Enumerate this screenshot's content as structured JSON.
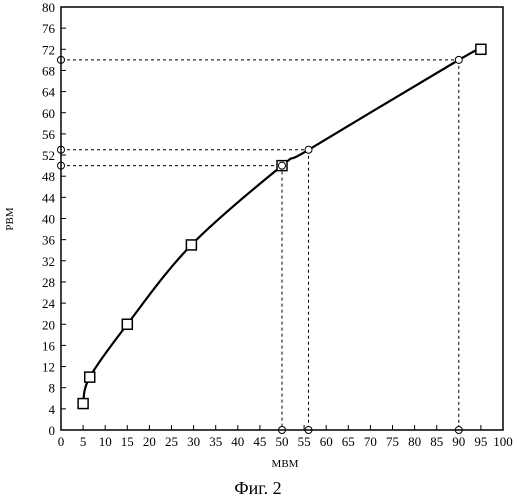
{
  "chart_data": {
    "type": "line",
    "xlabel": "МВМ",
    "ylabel": "РВМ",
    "caption": "Фиг. 2",
    "xlim": [
      0,
      100
    ],
    "ylim": [
      0,
      80
    ],
    "x_ticks": [
      0,
      5,
      10,
      15,
      20,
      25,
      30,
      35,
      40,
      45,
      50,
      55,
      60,
      65,
      70,
      75,
      80,
      85,
      90,
      95,
      100
    ],
    "y_ticks": [
      0,
      4,
      8,
      12,
      16,
      20,
      24,
      28,
      32,
      36,
      40,
      44,
      48,
      52,
      56,
      60,
      64,
      68,
      72,
      76,
      80
    ],
    "grid": false,
    "series": [
      {
        "marker": "square",
        "x": [
          5,
          6.5,
          15,
          29.5,
          50,
          95
        ],
        "y": [
          5,
          10,
          20,
          35,
          50,
          72
        ]
      }
    ],
    "curve": [
      {
        "x": 5,
        "y": 5
      },
      {
        "x": 6.5,
        "y": 10
      },
      {
        "x": 15,
        "y": 20
      },
      {
        "x": 29.5,
        "y": 35
      },
      {
        "x": 50,
        "y": 50
      },
      {
        "x": 56,
        "y": 53
      },
      {
        "x": 90,
        "y": 70
      },
      {
        "x": 95,
        "y": 72
      }
    ],
    "reference_points": [
      {
        "x": 50,
        "y": 50
      },
      {
        "x": 56,
        "y": 53
      },
      {
        "x": 90,
        "y": 70
      }
    ]
  }
}
